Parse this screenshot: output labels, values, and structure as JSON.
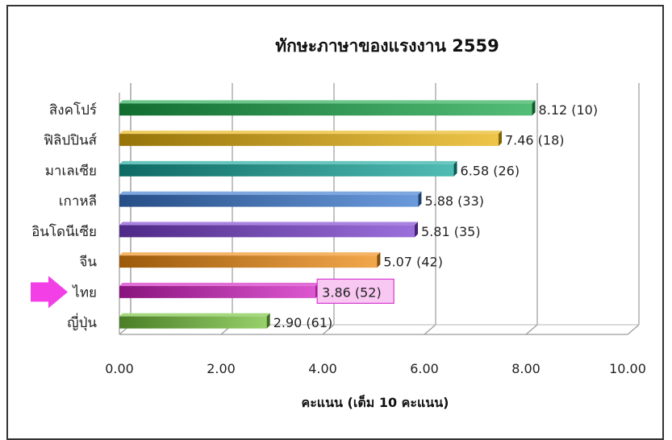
{
  "chart_data": {
    "type": "bar",
    "orientation": "horizontal",
    "title": "ทักษะภาษาของแรงงาน 2559",
    "xlabel": "คะแนน (เต็ม 10 คะแนน)",
    "ylabel": "",
    "xlim": [
      0,
      10
    ],
    "x_ticks": [
      "0.00",
      "2.00",
      "4.00",
      "6.00",
      "8.00",
      "10.00"
    ],
    "grid": true,
    "legend": "none",
    "highlight": "ไทย",
    "categories": [
      "สิงคโปร์",
      "ฟิลิปปินส์",
      "มาเลเซีย",
      "เกาหลี",
      "อินโดนีเซีย",
      "จีน",
      "ไทย",
      "ญี่ปุ่น"
    ],
    "values": [
      8.12,
      7.46,
      6.58,
      5.88,
      5.81,
      5.07,
      3.86,
      2.9
    ],
    "data_labels": [
      "8.12 (10)",
      "7.46 (18)",
      "6.58 (26)",
      "5.88 (33)",
      "5.81 (35)",
      "5.07 (42)",
      "3.86 (52)",
      "2.90 (61)"
    ],
    "colors": [
      "#1aa84a",
      "#e8b20c",
      "#14a59a",
      "#3a78d0",
      "#7a3fcf",
      "#ef8a10",
      "#d21fc0",
      "#74c23a"
    ],
    "highlight_box_fill": "#f9c8f2",
    "highlight_box_stroke": "#d63ad0",
    "arrow_color": "#f23fe6"
  }
}
